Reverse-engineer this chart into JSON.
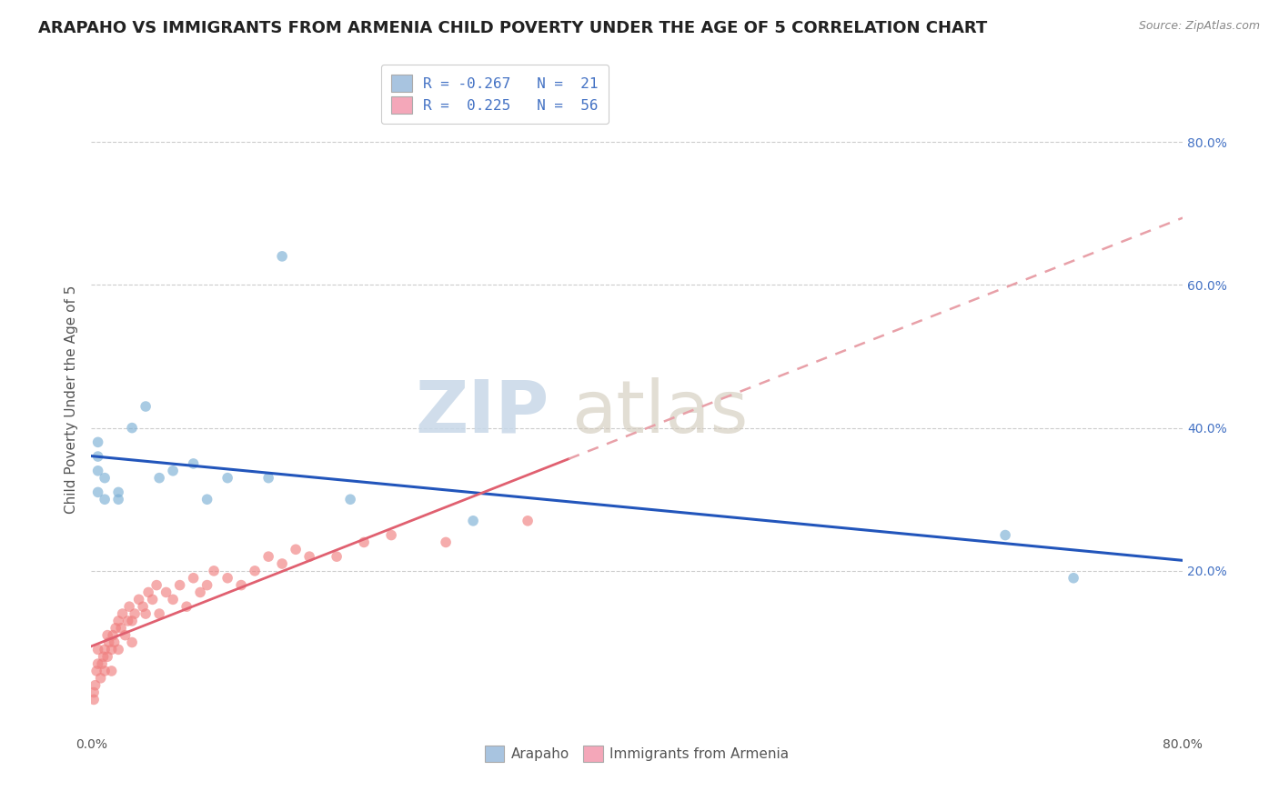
{
  "title": "ARAPAHO VS IMMIGRANTS FROM ARMENIA CHILD POVERTY UNDER THE AGE OF 5 CORRELATION CHART",
  "source": "Source: ZipAtlas.com",
  "ylabel": "Child Poverty Under the Age of 5",
  "right_yticks": [
    "80.0%",
    "60.0%",
    "40.0%",
    "20.0%"
  ],
  "right_ytick_vals": [
    0.8,
    0.6,
    0.4,
    0.2
  ],
  "xlim": [
    0.0,
    0.8
  ],
  "ylim": [
    -0.02,
    0.9
  ],
  "legend_blue_label": "R = -0.267   N =  21",
  "legend_pink_label": "R =  0.225   N =  56",
  "legend_blue_color": "#a8c4e0",
  "legend_pink_color": "#f4a7b9",
  "watermark_zip": "ZIP",
  "watermark_atlas": "atlas",
  "arapaho_x": [
    0.005,
    0.005,
    0.005,
    0.005,
    0.01,
    0.01,
    0.02,
    0.02,
    0.03,
    0.04,
    0.05,
    0.06,
    0.075,
    0.085,
    0.1,
    0.13,
    0.14,
    0.19,
    0.28,
    0.67,
    0.72
  ],
  "arapaho_y": [
    0.31,
    0.34,
    0.36,
    0.38,
    0.33,
    0.3,
    0.3,
    0.31,
    0.4,
    0.43,
    0.33,
    0.34,
    0.35,
    0.3,
    0.33,
    0.33,
    0.64,
    0.3,
    0.27,
    0.25,
    0.19
  ],
  "armenia_x": [
    0.002,
    0.002,
    0.003,
    0.004,
    0.005,
    0.005,
    0.007,
    0.008,
    0.009,
    0.01,
    0.01,
    0.012,
    0.012,
    0.013,
    0.015,
    0.015,
    0.016,
    0.017,
    0.018,
    0.02,
    0.02,
    0.022,
    0.023,
    0.025,
    0.027,
    0.028,
    0.03,
    0.03,
    0.032,
    0.035,
    0.038,
    0.04,
    0.042,
    0.045,
    0.048,
    0.05,
    0.055,
    0.06,
    0.065,
    0.07,
    0.075,
    0.08,
    0.085,
    0.09,
    0.1,
    0.11,
    0.12,
    0.13,
    0.14,
    0.15,
    0.16,
    0.18,
    0.2,
    0.22,
    0.26,
    0.32
  ],
  "armenia_y": [
    0.02,
    0.03,
    0.04,
    0.06,
    0.07,
    0.09,
    0.05,
    0.07,
    0.08,
    0.06,
    0.09,
    0.08,
    0.11,
    0.1,
    0.06,
    0.09,
    0.11,
    0.1,
    0.12,
    0.09,
    0.13,
    0.12,
    0.14,
    0.11,
    0.13,
    0.15,
    0.1,
    0.13,
    0.14,
    0.16,
    0.15,
    0.14,
    0.17,
    0.16,
    0.18,
    0.14,
    0.17,
    0.16,
    0.18,
    0.15,
    0.19,
    0.17,
    0.18,
    0.2,
    0.19,
    0.18,
    0.2,
    0.22,
    0.21,
    0.23,
    0.22,
    0.22,
    0.24,
    0.25,
    0.24,
    0.27
  ],
  "blue_color": "#7bafd4",
  "pink_color": "#f08080",
  "dot_size": 70,
  "dot_alpha": 0.65,
  "line_blue_color": "#2255bb",
  "line_pink_solid_color": "#e06070",
  "line_pink_dash_color": "#e8a0a8",
  "title_fontsize": 13,
  "axis_label_fontsize": 11,
  "tick_fontsize": 10,
  "background_color": "#ffffff",
  "grid_color": "#cccccc"
}
